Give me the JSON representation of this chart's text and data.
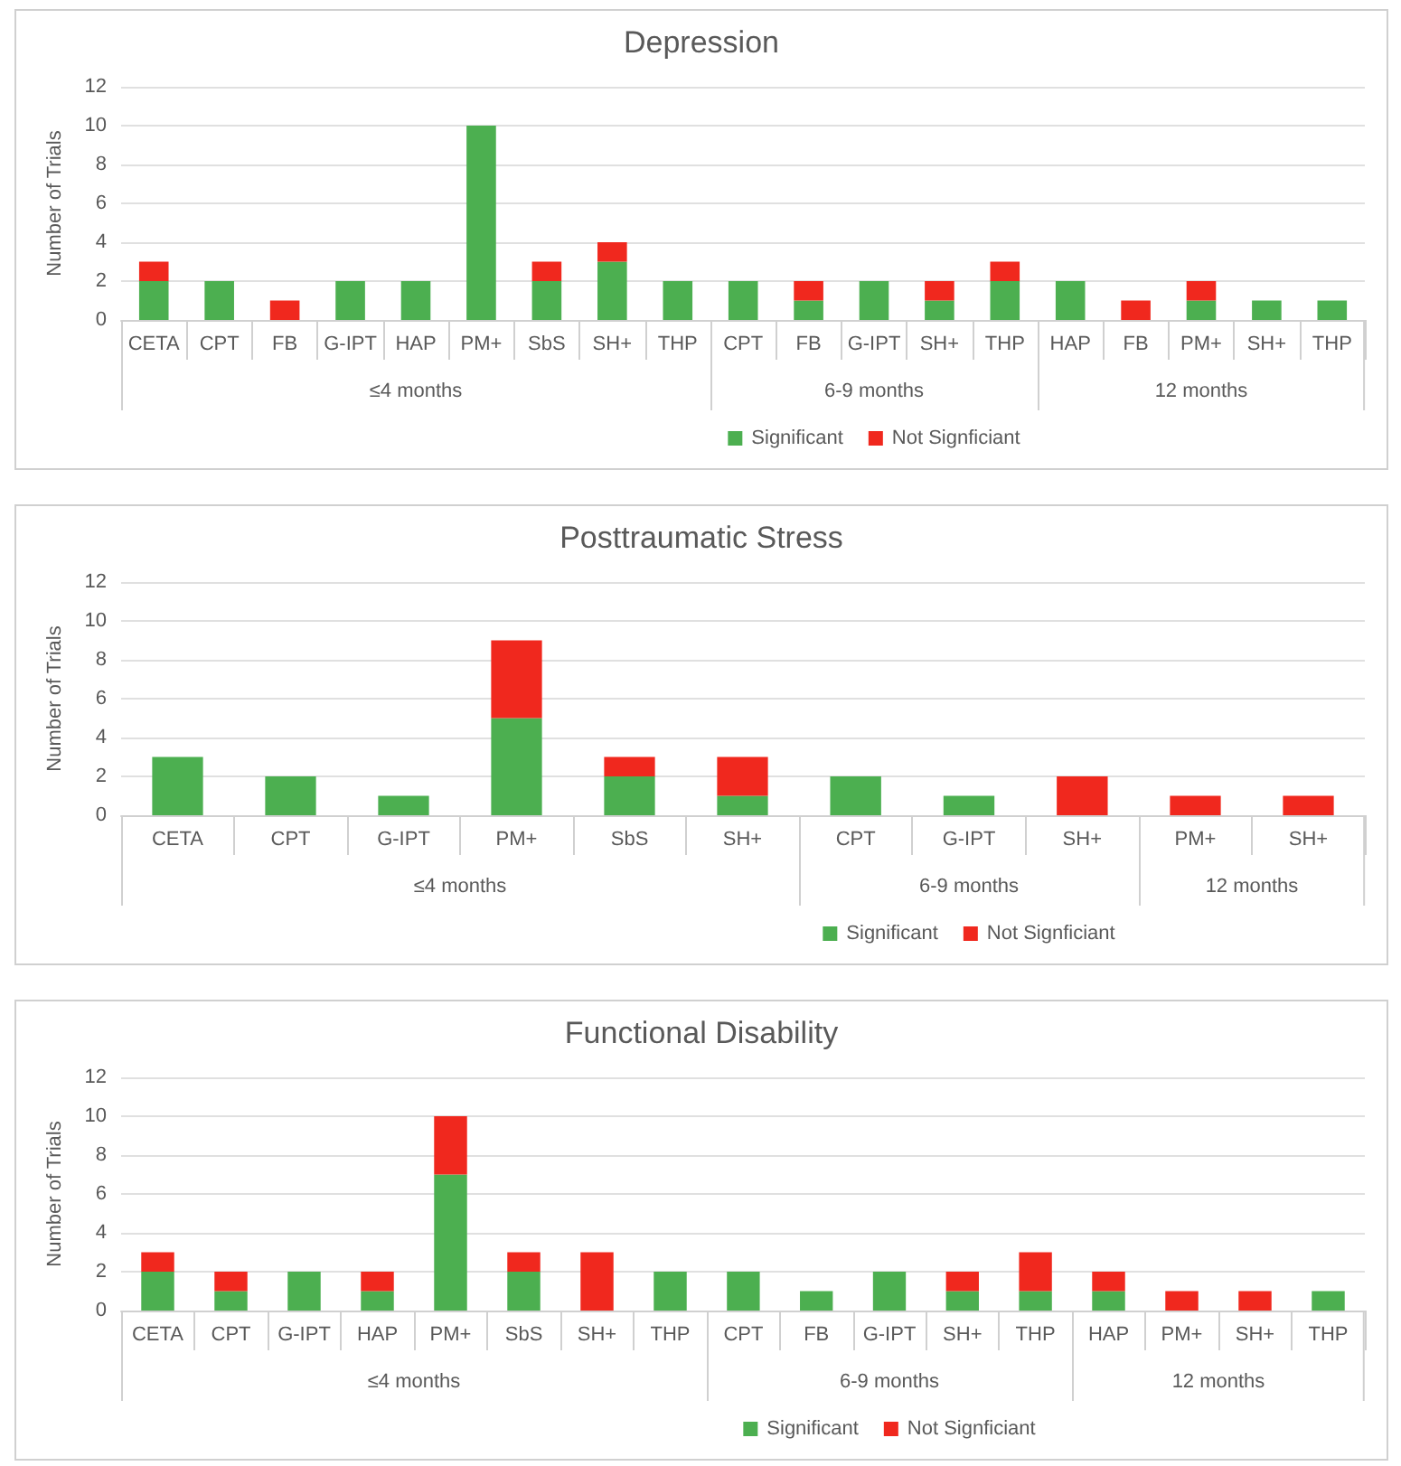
{
  "chart_data": [
    {
      "type": "bar",
      "title": "Depression",
      "ylabel": "Number of Trials",
      "xlabel": "≤4 months",
      "stacked": true,
      "grid": "y",
      "categories": [
        "CETA",
        "CPT",
        "FB",
        "G-IPT",
        "HAP",
        "PM+",
        "SbS",
        "SH+",
        "THP"
      ],
      "ylim": [
        0,
        12
      ],
      "yticks": [
        0,
        2,
        4,
        6,
        8,
        10,
        12
      ],
      "series": [
        {
          "color": "#4caf50",
          "values": [
            2,
            2,
            0,
            2,
            2,
            10,
            2,
            3,
            2
          ]
        },
        {
          "color": "#f0281e",
          "values": [
            1,
            0,
            1,
            0,
            0,
            0,
            1,
            1,
            0
          ]
        }
      ]
    },
    {
      "type": "bar",
      "xlabel": "6-9 months",
      "stacked": true,
      "grid": "y",
      "legend": "bottom",
      "tick_labels": "x",
      "categories": [
        "CPT",
        "FB",
        "G-IPT",
        "SH+",
        "THP"
      ],
      "ylim": [
        0,
        12
      ],
      "yticks": [
        0,
        2,
        4,
        6,
        8,
        10,
        12
      ],
      "series": [
        {
          "name": "Significant",
          "color": "#4caf50",
          "values": [
            2,
            1,
            2,
            1,
            2
          ]
        },
        {
          "name": "Not Signficiant",
          "color": "#f0281e",
          "values": [
            0,
            1,
            0,
            1,
            1
          ]
        }
      ]
    },
    {
      "type": "bar",
      "xlabel": "12 months",
      "stacked": true,
      "grid": "y",
      "tick_labels": "x",
      "categories": [
        "HAP",
        "FB",
        "PM+",
        "SH+",
        "THP"
      ],
      "ylim": [
        0,
        12
      ],
      "yticks": [
        0,
        2,
        4,
        6,
        8,
        10,
        12
      ],
      "series": [
        {
          "color": "#4caf50",
          "values": [
            2,
            0,
            1,
            1,
            1
          ]
        },
        {
          "color": "#f0281e",
          "values": [
            0,
            1,
            1,
            0,
            0
          ]
        }
      ]
    },
    {
      "type": "bar",
      "title": "Posttraumatic Stress",
      "ylabel": "Number of Trials",
      "xlabel": "≤4 months",
      "stacked": true,
      "grid": "y",
      "categories": [
        "CETA",
        "CPT",
        "G-IPT",
        "PM+",
        "SbS",
        "SH+"
      ],
      "ylim": [
        0,
        12
      ],
      "yticks": [
        0,
        2,
        4,
        6,
        8,
        10,
        12
      ],
      "series": [
        {
          "color": "#4caf50",
          "values": [
            3,
            2,
            1,
            5,
            2,
            1
          ]
        },
        {
          "color": "#f0281e",
          "values": [
            0,
            0,
            0,
            4,
            1,
            2
          ]
        }
      ]
    },
    {
      "type": "bar",
      "xlabel": "6-9 months",
      "stacked": true,
      "grid": "y",
      "legend": "bottom",
      "tick_labels": "x",
      "categories": [
        "CPT",
        "G-IPT",
        "SH+"
      ],
      "ylim": [
        0,
        12
      ],
      "yticks": [
        0,
        2,
        4,
        6,
        8,
        10,
        12
      ],
      "series": [
        {
          "name": "Significant",
          "color": "#4caf50",
          "values": [
            2,
            1,
            0
          ]
        },
        {
          "name": "Not Signficiant",
          "color": "#f0281e",
          "values": [
            0,
            0,
            2
          ]
        }
      ]
    },
    {
      "type": "bar",
      "xlabel": "12 months",
      "stacked": true,
      "grid": "y",
      "tick_labels": "x",
      "categories": [
        "PM+",
        "SH+"
      ],
      "ylim": [
        0,
        12
      ],
      "yticks": [
        0,
        2,
        4,
        6,
        8,
        10,
        12
      ],
      "series": [
        {
          "color": "#4caf50",
          "values": [
            0,
            0
          ]
        },
        {
          "color": "#f0281e",
          "values": [
            1,
            1
          ]
        }
      ]
    },
    {
      "type": "bar",
      "title": "Functional Disability",
      "ylabel": "Number of Trials",
      "xlabel": "≤4 months",
      "stacked": true,
      "grid": "y",
      "categories": [
        "CETA",
        "CPT",
        "G-IPT",
        "HAP",
        "PM+",
        "SbS",
        "SH+",
        "THP"
      ],
      "ylim": [
        0,
        12
      ],
      "yticks": [
        0,
        2,
        4,
        6,
        8,
        10,
        12
      ],
      "series": [
        {
          "color": "#4caf50",
          "values": [
            2,
            1,
            2,
            1,
            7,
            2,
            0,
            2
          ]
        },
        {
          "color": "#f0281e",
          "values": [
            1,
            1,
            0,
            1,
            3,
            1,
            3,
            0
          ]
        }
      ]
    },
    {
      "type": "bar",
      "xlabel": "6-9 months",
      "stacked": true,
      "grid": "y",
      "legend": "bottom",
      "tick_labels": "x",
      "categories": [
        "CPT",
        "FB",
        "G-IPT",
        "SH+",
        "THP"
      ],
      "ylim": [
        0,
        12
      ],
      "yticks": [
        0,
        2,
        4,
        6,
        8,
        10,
        12
      ],
      "series": [
        {
          "name": "Significant",
          "color": "#4caf50",
          "values": [
            2,
            1,
            2,
            1,
            1
          ]
        },
        {
          "name": "Not Signficiant",
          "color": "#f0281e",
          "values": [
            0,
            0,
            0,
            1,
            2
          ]
        }
      ]
    },
    {
      "type": "bar",
      "xlabel": "12 months",
      "stacked": true,
      "grid": "y",
      "tick_labels": "x",
      "categories": [
        "HAP",
        "PM+",
        "SH+",
        "THP"
      ],
      "ylim": [
        0,
        12
      ],
      "yticks": [
        0,
        2,
        4,
        6,
        8,
        10,
        12
      ],
      "series": [
        {
          "color": "#4caf50",
          "values": [
            1,
            0,
            0,
            1
          ]
        },
        {
          "color": "#f0281e",
          "values": [
            1,
            1,
            1,
            0
          ]
        }
      ]
    }
  ]
}
